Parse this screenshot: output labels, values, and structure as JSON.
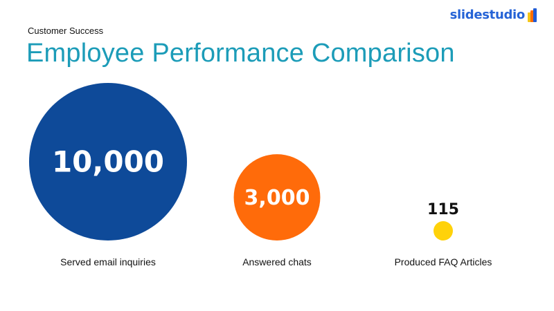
{
  "brand": {
    "name": "slidestudio",
    "color": "#2563D6",
    "logo_colors": [
      "#F5C518",
      "#FF6B00",
      "#1F5BD6"
    ]
  },
  "header": {
    "subtitle": "Customer Success",
    "title": "Employee Performance Comparison",
    "title_color": "#1C9CB8"
  },
  "chart_data": {
    "type": "bubble",
    "title": "Employee Performance Comparison",
    "categories": [
      "Served email inquiries",
      "Answered chats",
      "Produced FAQ Articles"
    ],
    "values": [
      10000,
      3000,
      115
    ],
    "value_labels": [
      "10,000",
      "3,000",
      "115"
    ],
    "colors": [
      "#0E4A99",
      "#FF6B0A",
      "#FFD20A"
    ],
    "label_position": [
      "inside",
      "inside",
      "above"
    ],
    "value_label_colors": [
      "#FFFFFF",
      "#FFFFFF",
      "#111111"
    ]
  }
}
